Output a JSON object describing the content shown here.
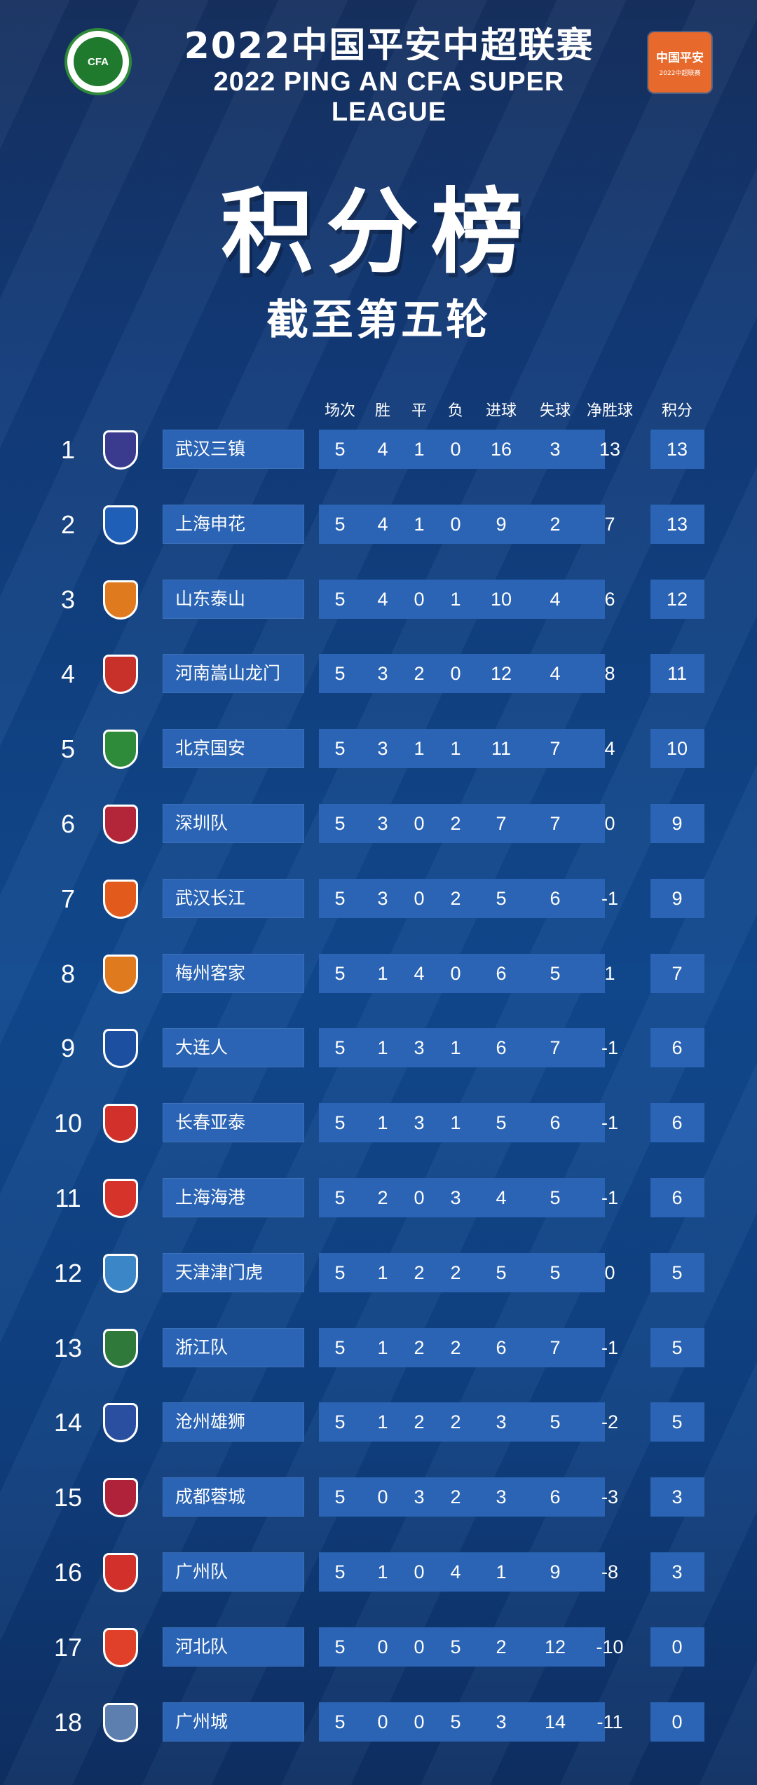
{
  "header": {
    "title_cn": "2022中国平安中超联赛",
    "title_en": "2022 PING AN CFA SUPER LEAGUE",
    "left_logo_text": "CFA",
    "right_logo_text": "中国平安",
    "right_logo_sub": "2022中超联赛"
  },
  "main_title": "积分榜",
  "subtitle": "截至第五轮",
  "columns": [
    "场次",
    "胜",
    "平",
    "负",
    "进球",
    "失球",
    "净胜球",
    "积分"
  ],
  "teams": [
    {
      "rank": "1",
      "name": "武汉三镇",
      "played": "5",
      "won": "4",
      "drawn": "1",
      "lost": "0",
      "gf": "16",
      "ga": "3",
      "gd": "13",
      "pts": "13",
      "color": "#3a3a8f"
    },
    {
      "rank": "2",
      "name": "上海申花",
      "played": "5",
      "won": "4",
      "drawn": "1",
      "lost": "0",
      "gf": "9",
      "ga": "2",
      "gd": "7",
      "pts": "13",
      "color": "#1f5fb8"
    },
    {
      "rank": "3",
      "name": "山东泰山",
      "played": "5",
      "won": "4",
      "drawn": "0",
      "lost": "1",
      "gf": "10",
      "ga": "4",
      "gd": "6",
      "pts": "12",
      "color": "#e07a1f"
    },
    {
      "rank": "4",
      "name": "河南嵩山龙门",
      "played": "5",
      "won": "3",
      "drawn": "2",
      "lost": "0",
      "gf": "12",
      "ga": "4",
      "gd": "8",
      "pts": "11",
      "color": "#c8302a"
    },
    {
      "rank": "5",
      "name": "北京国安",
      "played": "5",
      "won": "3",
      "drawn": "1",
      "lost": "1",
      "gf": "11",
      "ga": "7",
      "gd": "4",
      "pts": "10",
      "color": "#2e8b3a"
    },
    {
      "rank": "6",
      "name": "深圳队",
      "played": "5",
      "won": "3",
      "drawn": "0",
      "lost": "2",
      "gf": "7",
      "ga": "7",
      "gd": "0",
      "pts": "9",
      "color": "#b3263a"
    },
    {
      "rank": "7",
      "name": "武汉长江",
      "played": "5",
      "won": "3",
      "drawn": "0",
      "lost": "2",
      "gf": "5",
      "ga": "6",
      "gd": "-1",
      "pts": "9",
      "color": "#e25a1c"
    },
    {
      "rank": "8",
      "name": "梅州客家",
      "played": "5",
      "won": "1",
      "drawn": "4",
      "lost": "0",
      "gf": "6",
      "ga": "5",
      "gd": "1",
      "pts": "7",
      "color": "#e07a1f"
    },
    {
      "rank": "9",
      "name": "大连人",
      "played": "5",
      "won": "1",
      "drawn": "3",
      "lost": "1",
      "gf": "6",
      "ga": "7",
      "gd": "-1",
      "pts": "6",
      "color": "#1d4fa0"
    },
    {
      "rank": "10",
      "name": "长春亚泰",
      "played": "5",
      "won": "1",
      "drawn": "3",
      "lost": "1",
      "gf": "5",
      "ga": "6",
      "gd": "-1",
      "pts": "6",
      "color": "#d2302a"
    },
    {
      "rank": "11",
      "name": "上海海港",
      "played": "5",
      "won": "2",
      "drawn": "0",
      "lost": "3",
      "gf": "4",
      "ga": "5",
      "gd": "-1",
      "pts": "6",
      "color": "#d6332a"
    },
    {
      "rank": "12",
      "name": "天津津门虎",
      "played": "5",
      "won": "1",
      "drawn": "2",
      "lost": "2",
      "gf": "5",
      "ga": "5",
      "gd": "0",
      "pts": "5",
      "color": "#3b86c6"
    },
    {
      "rank": "13",
      "name": "浙江队",
      "played": "5",
      "won": "1",
      "drawn": "2",
      "lost": "2",
      "gf": "6",
      "ga": "7",
      "gd": "-1",
      "pts": "5",
      "color": "#2f7a3a"
    },
    {
      "rank": "14",
      "name": "沧州雄狮",
      "played": "5",
      "won": "1",
      "drawn": "2",
      "lost": "2",
      "gf": "3",
      "ga": "5",
      "gd": "-2",
      "pts": "5",
      "color": "#2a4fa0"
    },
    {
      "rank": "15",
      "name": "成都蓉城",
      "played": "5",
      "won": "0",
      "drawn": "3",
      "lost": "2",
      "gf": "3",
      "ga": "6",
      "gd": "-3",
      "pts": "3",
      "color": "#b0223a"
    },
    {
      "rank": "16",
      "name": "广州队",
      "played": "5",
      "won": "1",
      "drawn": "0",
      "lost": "4",
      "gf": "1",
      "ga": "9",
      "gd": "-8",
      "pts": "3",
      "color": "#d2302a"
    },
    {
      "rank": "17",
      "name": "河北队",
      "played": "5",
      "won": "0",
      "drawn": "0",
      "lost": "5",
      "gf": "2",
      "ga": "12",
      "gd": "-10",
      "pts": "0",
      "color": "#e0402a"
    },
    {
      "rank": "18",
      "name": "广州城",
      "played": "5",
      "won": "0",
      "drawn": "0",
      "lost": "5",
      "gf": "3",
      "ga": "14",
      "gd": "-11",
      "pts": "0",
      "color": "#5c7fb0"
    }
  ],
  "colors": {
    "cell_bg": "#2b64b4",
    "background": "#123f82"
  }
}
